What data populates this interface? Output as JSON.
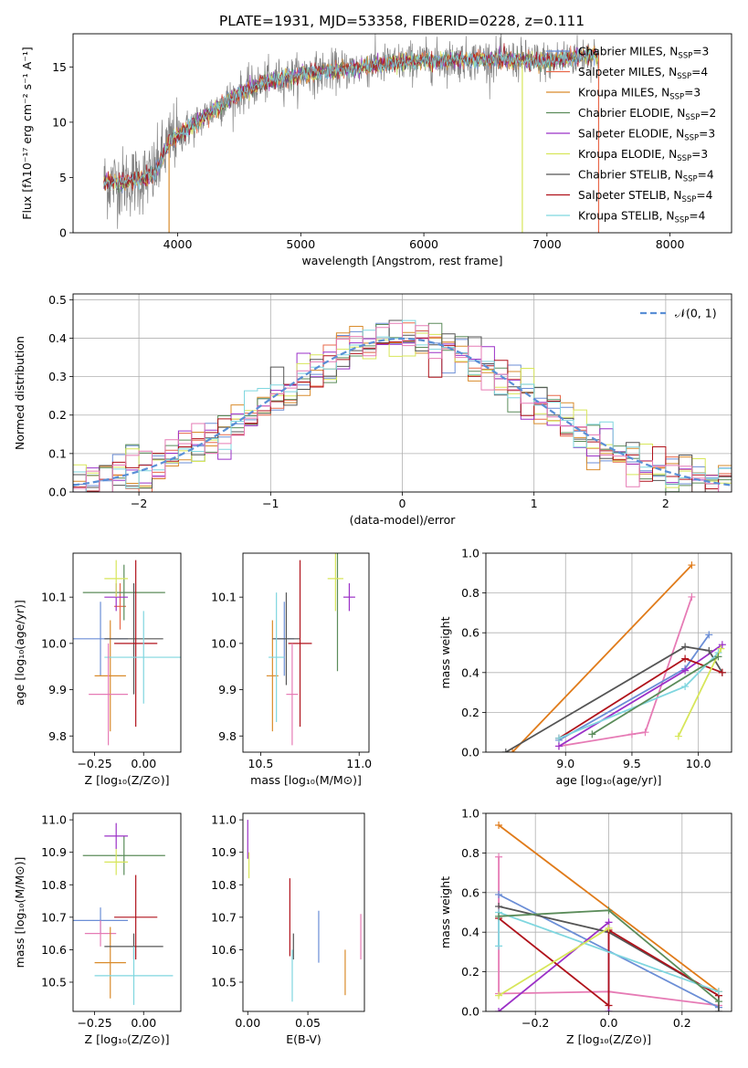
{
  "title": "PLATE=1931, MJD=53358, FIBERID=0228, z=0.111",
  "colors": {
    "chabrier_miles": "#6b8ed6",
    "salpeter_miles": "#e8684a",
    "kroupa_miles": "#d98b2b",
    "chabrier_elodie": "#5b8c5a",
    "salpeter_elodie": "#9b30c7",
    "kroupa_elodie": "#d7e65a",
    "chabrier_stelib": "#555555",
    "salpeter_stelib": "#b0121b",
    "kroupa_stelib": "#7fd6df",
    "pink": "#e67bb5",
    "orange2": "#e07b1a",
    "grid": "#b0b0b0"
  },
  "chart_data": [
    {
      "id": "spectrum",
      "type": "line",
      "xlabel": "wavelength [Angstrom, rest frame]",
      "ylabel": "Flux [fλ10⁻¹⁷ erg cm⁻² s⁻¹ A⁻¹]",
      "xlim": [
        3150,
        8500
      ],
      "ylim": [
        0,
        18
      ],
      "xticks": [
        4000,
        5000,
        6000,
        7000,
        8000
      ],
      "yticks": [
        0,
        5,
        10,
        15
      ],
      "grid": false,
      "legend": "top-right",
      "legend_entries": [
        {
          "label": "Chabrier MILES, N",
          "sub": "SSP",
          "tail": "=3",
          "color": "chabrier_miles"
        },
        {
          "label": "Salpeter MILES, N",
          "sub": "SSP",
          "tail": "=4",
          "color": "salpeter_miles"
        },
        {
          "label": "Kroupa MILES, N",
          "sub": "SSP",
          "tail": "=3",
          "color": "kroupa_miles"
        },
        {
          "label": "Chabrier ELODIE, N",
          "sub": "SSP",
          "tail": "=2",
          "color": "chabrier_elodie"
        },
        {
          "label": "Salpeter ELODIE, N",
          "sub": "SSP",
          "tail": "=3",
          "color": "salpeter_elodie"
        },
        {
          "label": "Kroupa ELODIE, N",
          "sub": "SSP",
          "tail": "=3",
          "color": "kroupa_elodie"
        },
        {
          "label": "Chabrier STELIB, N",
          "sub": "SSP",
          "tail": "=4",
          "color": "chabrier_stelib"
        },
        {
          "label": "Salpeter STELIB, N",
          "sub": "SSP",
          "tail": "=4",
          "color": "salpeter_stelib"
        },
        {
          "label": "Kroupa STELIB, N",
          "sub": "SSP",
          "tail": "=4",
          "color": "kroupa_stelib"
        }
      ],
      "continuum": [
        [
          3400,
          4.5
        ],
        [
          3600,
          4.6
        ],
        [
          3800,
          5.2
        ],
        [
          3950,
          8.5
        ],
        [
          4100,
          9.5
        ],
        [
          4300,
          11.2
        ],
        [
          4500,
          12.6
        ],
        [
          4700,
          13.6
        ],
        [
          5000,
          14.3
        ],
        [
          5300,
          14.7
        ],
        [
          5600,
          15.1
        ],
        [
          5900,
          15.5
        ],
        [
          6200,
          15.6
        ],
        [
          6500,
          15.7
        ],
        [
          6800,
          15.6
        ],
        [
          7000,
          15.5
        ],
        [
          7200,
          15.9
        ],
        [
          7400,
          16.2
        ]
      ],
      "data_range": [
        3400,
        7420
      ]
    },
    {
      "id": "residuals",
      "type": "line",
      "xlabel": "(data-model)/error",
      "ylabel": "Normed distribution",
      "xlim": [
        -2.5,
        2.5
      ],
      "ylim": [
        0,
        0.515
      ],
      "xticks": [
        -2,
        -1,
        0,
        1,
        2
      ],
      "yticks": [
        0.0,
        0.1,
        0.2,
        0.3,
        0.4,
        0.5
      ],
      "grid": true,
      "legend": "top-right",
      "series_name": "𝒩(0, 1)",
      "bin_width": 0.1
    },
    {
      "id": "age_vs_z",
      "type": "scatter",
      "xlabel": "Z [log₁₀(Z/Z⊙)]",
      "ylabel": "age  [log₁₀(age/yr)]",
      "xlim": [
        -0.36,
        0.19
      ],
      "ylim": [
        9.765,
        10.195
      ],
      "xticks": [
        -0.25,
        0.0
      ],
      "yticks": [
        9.8,
        9.9,
        10.0,
        10.1
      ],
      "grid": false,
      "points": [
        {
          "x": -0.22,
          "y": 10.01,
          "xerr": 0.14,
          "yerr": 0.08,
          "color": "chabrier_miles"
        },
        {
          "x": -0.12,
          "y": 10.08,
          "xerr": 0.03,
          "yerr": 0.05,
          "color": "salpeter_miles"
        },
        {
          "x": -0.17,
          "y": 9.93,
          "xerr": 0.08,
          "yerr": 0.12,
          "color": "kroupa_miles"
        },
        {
          "x": -0.1,
          "y": 10.11,
          "xerr": 0.21,
          "yerr": 0.06,
          "color": "chabrier_elodie"
        },
        {
          "x": -0.14,
          "y": 10.1,
          "xerr": 0.06,
          "yerr": 0.03,
          "color": "salpeter_elodie"
        },
        {
          "x": -0.14,
          "y": 10.14,
          "xerr": 0.06,
          "yerr": 0.04,
          "color": "kroupa_elodie"
        },
        {
          "x": -0.05,
          "y": 10.01,
          "xerr": 0.15,
          "yerr": 0.12,
          "color": "chabrier_stelib"
        },
        {
          "x": -0.04,
          "y": 10.0,
          "xerr": 0.11,
          "yerr": 0.18,
          "color": "salpeter_stelib"
        },
        {
          "x": 0.0,
          "y": 9.97,
          "xerr": 0.2,
          "yerr": 0.1,
          "color": "kroupa_stelib"
        },
        {
          "x": -0.18,
          "y": 9.89,
          "xerr": 0.1,
          "yerr": 0.11,
          "color": "pink"
        }
      ]
    },
    {
      "id": "age_vs_mass",
      "type": "scatter",
      "xlabel": "mass [log₁₀(M/M⊙)]",
      "ylabel": "",
      "xlim": [
        10.41,
        11.05
      ],
      "ylim": [
        9.765,
        10.195
      ],
      "xticks": [
        10.5,
        11.0
      ],
      "yticks": [
        9.8,
        9.9,
        10.0,
        10.1
      ],
      "grid": false,
      "points": [
        {
          "x": 10.62,
          "y": 10.01,
          "xerr": 0.05,
          "yerr": 0.08,
          "color": "chabrier_miles"
        },
        {
          "x": 10.56,
          "y": 9.93,
          "xerr": 0.03,
          "yerr": 0.12,
          "color": "kroupa_miles"
        },
        {
          "x": 10.89,
          "y": 10.11,
          "xerr": 0.0,
          "yerr": 0.17,
          "color": "chabrier_elodie"
        },
        {
          "x": 10.95,
          "y": 10.1,
          "xerr": 0.03,
          "yerr": 0.03,
          "color": "salpeter_elodie"
        },
        {
          "x": 10.88,
          "y": 10.14,
          "xerr": 0.04,
          "yerr": 0.07,
          "color": "kroupa_elodie"
        },
        {
          "x": 10.63,
          "y": 10.01,
          "xerr": 0.07,
          "yerr": 0.1,
          "color": "chabrier_stelib"
        },
        {
          "x": 10.7,
          "y": 10.0,
          "xerr": 0.06,
          "yerr": 0.18,
          "color": "salpeter_stelib"
        },
        {
          "x": 10.58,
          "y": 9.97,
          "xerr": 0.04,
          "yerr": 0.14,
          "color": "kroupa_stelib"
        },
        {
          "x": 10.66,
          "y": 9.89,
          "xerr": 0.03,
          "yerr": 0.11,
          "color": "pink"
        }
      ]
    },
    {
      "id": "weight_vs_age",
      "type": "line",
      "xlabel": "age  [log₁₀(age/yr)]",
      "ylabel": "mass weight",
      "xlim": [
        8.4,
        10.25
      ],
      "ylim": [
        0.0,
        1.0
      ],
      "xticks": [
        9.0,
        9.5,
        10.0
      ],
      "yticks": [
        0.0,
        0.2,
        0.4,
        0.6,
        0.8,
        1.0
      ],
      "grid": true,
      "series": [
        {
          "color": "orange2",
          "x": [
            8.6,
            9.95
          ],
          "y": [
            0.0,
            0.94
          ]
        },
        {
          "color": "pink",
          "x": [
            8.95,
            9.5,
            9.6,
            9.95
          ],
          "y": [
            0.03,
            0.09,
            0.1,
            0.78
          ]
        },
        {
          "color": "chabrier_miles",
          "x": [
            8.95,
            9.9,
            10.08
          ],
          "y": [
            0.06,
            0.42,
            0.59
          ]
        },
        {
          "color": "salpeter_elodie",
          "x": [
            8.95,
            9.9,
            10.18
          ],
          "y": [
            0.03,
            0.41,
            0.54
          ]
        },
        {
          "color": "chabrier_stelib",
          "x": [
            8.55,
            9.9,
            10.08,
            10.18
          ],
          "y": [
            0.0,
            0.53,
            0.51,
            0.4
          ]
        },
        {
          "color": "salpeter_stelib",
          "x": [
            8.95,
            9.9,
            10.18
          ],
          "y": [
            0.07,
            0.47,
            0.4
          ]
        },
        {
          "color": "kroupa_stelib",
          "x": [
            8.95,
            9.9,
            10.15
          ],
          "y": [
            0.07,
            0.33,
            0.5
          ]
        },
        {
          "color": "kroupa_elodie",
          "x": [
            9.85,
            10.17
          ],
          "y": [
            0.08,
            0.52
          ]
        },
        {
          "color": "chabrier_elodie",
          "x": [
            9.2,
            10.15
          ],
          "y": [
            0.09,
            0.48
          ]
        }
      ]
    },
    {
      "id": "mass_vs_z",
      "type": "scatter",
      "xlabel": "Z [log₁₀(Z/Z⊙)]",
      "ylabel": "mass [log₁₀(M/M⊙)]",
      "xlim": [
        -0.36,
        0.19
      ],
      "ylim": [
        10.41,
        11.02
      ],
      "xticks": [
        -0.25,
        0.0
      ],
      "yticks": [
        10.5,
        10.6,
        10.7,
        10.8,
        10.9,
        11.0
      ],
      "grid": false,
      "points": [
        {
          "x": -0.22,
          "y": 10.69,
          "xerr": 0.14,
          "yerr": 0.04,
          "color": "chabrier_miles"
        },
        {
          "x": -0.22,
          "y": 10.65,
          "xerr": 0.08,
          "yerr": 0.04,
          "color": "pink"
        },
        {
          "x": -0.17,
          "y": 10.56,
          "xerr": 0.08,
          "yerr": 0.11,
          "color": "kroupa_miles"
        },
        {
          "x": -0.1,
          "y": 10.89,
          "xerr": 0.21,
          "yerr": 0.06,
          "color": "chabrier_elodie"
        },
        {
          "x": -0.14,
          "y": 10.95,
          "xerr": 0.06,
          "yerr": 0.04,
          "color": "salpeter_elodie"
        },
        {
          "x": -0.14,
          "y": 10.87,
          "xerr": 0.06,
          "yerr": 0.04,
          "color": "kroupa_elodie"
        },
        {
          "x": -0.05,
          "y": 10.61,
          "xerr": 0.15,
          "yerr": 0.04,
          "color": "chabrier_stelib"
        },
        {
          "x": -0.04,
          "y": 10.7,
          "xerr": 0.11,
          "yerr": 0.13,
          "color": "salpeter_stelib"
        },
        {
          "x": -0.05,
          "y": 10.52,
          "xerr": 0.2,
          "yerr": 0.09,
          "color": "kroupa_stelib"
        }
      ]
    },
    {
      "id": "mass_vs_ebv",
      "type": "scatter",
      "xlabel": "E(B-V)",
      "ylabel": "",
      "xlim": [
        -0.004,
        0.097
      ],
      "ylim": [
        10.41,
        11.02
      ],
      "xticks": [
        0.0,
        0.05
      ],
      "yticks": [
        10.5,
        10.6,
        10.7,
        10.8,
        10.9,
        11.0
      ],
      "grid": false,
      "points": [
        {
          "x": 0.0,
          "y": 10.94,
          "xerr": 0.0,
          "yerr": 0.06,
          "color": "salpeter_elodie"
        },
        {
          "x": 0.001,
          "y": 10.86,
          "xerr": 0.0,
          "yerr": 0.04,
          "color": "kroupa_elodie"
        },
        {
          "x": 0.035,
          "y": 10.7,
          "xerr": 0.0,
          "yerr": 0.12,
          "color": "salpeter_stelib"
        },
        {
          "x": 0.038,
          "y": 10.61,
          "xerr": 0.0,
          "yerr": 0.04,
          "color": "chabrier_stelib"
        },
        {
          "x": 0.037,
          "y": 10.52,
          "xerr": 0.0,
          "yerr": 0.08,
          "color": "kroupa_stelib"
        },
        {
          "x": 0.059,
          "y": 10.64,
          "xerr": 0.0,
          "yerr": 0.08,
          "color": "chabrier_miles"
        },
        {
          "x": 0.081,
          "y": 10.53,
          "xerr": 0.0,
          "yerr": 0.07,
          "color": "kroupa_miles"
        },
        {
          "x": 0.094,
          "y": 10.64,
          "xerr": 0.0,
          "yerr": 0.07,
          "color": "pink"
        }
      ]
    },
    {
      "id": "weight_vs_z",
      "type": "line",
      "xlabel": "Z [log₁₀(Z/Z⊙)]",
      "ylabel": "mass weight",
      "xlim": [
        -0.335,
        0.335
      ],
      "ylim": [
        0.0,
        1.0
      ],
      "xticks": [
        -0.2,
        0.0,
        0.2
      ],
      "yticks": [
        0.0,
        0.2,
        0.4,
        0.6,
        0.8,
        1.0
      ],
      "grid": true,
      "series": [
        {
          "color": "orange2",
          "x": [
            -0.3,
            0.3
          ],
          "y": [
            0.94,
            0.1
          ]
        },
        {
          "color": "pink",
          "x": [
            -0.3,
            -0.3,
            0.0,
            0.3
          ],
          "y": [
            0.78,
            0.09,
            0.1,
            0.03
          ]
        },
        {
          "color": "chabrier_miles",
          "x": [
            -0.3,
            0.3
          ],
          "y": [
            0.59,
            0.02
          ]
        },
        {
          "color": "salpeter_elodie",
          "x": [
            -0.3,
            0.0,
            0.0
          ],
          "y": [
            0.0,
            0.45,
            0.0
          ]
        },
        {
          "color": "chabrier_stelib",
          "x": [
            -0.3,
            0.0,
            0.3,
            0.3
          ],
          "y": [
            0.53,
            0.4,
            0.08,
            0.0
          ]
        },
        {
          "color": "salpeter_stelib",
          "x": [
            -0.3,
            0.0,
            0.0,
            0.3
          ],
          "y": [
            0.47,
            0.03,
            0.41,
            0.08
          ]
        },
        {
          "color": "kroupa_stelib",
          "x": [
            -0.3,
            -0.3,
            0.3
          ],
          "y": [
            0.33,
            0.5,
            0.1
          ]
        },
        {
          "color": "kroupa_elodie",
          "x": [
            -0.3,
            0.0
          ],
          "y": [
            0.08,
            0.42
          ]
        },
        {
          "color": "chabrier_elodie",
          "x": [
            -0.3,
            0.0,
            0.3
          ],
          "y": [
            0.48,
            0.51,
            0.05
          ]
        }
      ]
    }
  ]
}
